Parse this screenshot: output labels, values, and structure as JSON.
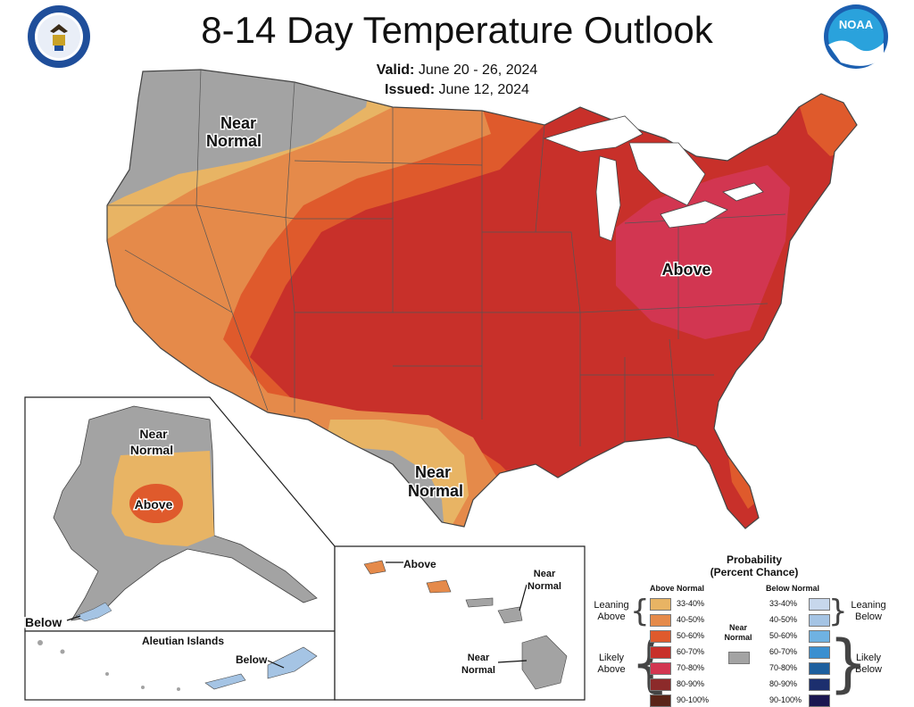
{
  "header": {
    "title": "8-14 Day Temperature Outlook",
    "valid_label": "Valid:",
    "valid_dates": "June 20 - 26, 2024",
    "issued_label": "Issued:",
    "issued_date": "June 12, 2024"
  },
  "logos": {
    "left": "commerce-seal-icon",
    "right": "noaa-logo-icon"
  },
  "colors": {
    "near_normal": "#a3a3a3",
    "above_33_40": "#e8b464",
    "above_40_50": "#e58a4a",
    "above_50_60": "#df5a2c",
    "above_60_70": "#c8302a",
    "above_70_80": "#d23651",
    "above_80_90": "#8c2a2a",
    "above_90_100": "#5a2418",
    "below_33_40": "#c7d7ec",
    "below_40_50": "#a5c4e4",
    "below_50_60": "#6fb2e2",
    "below_60_70": "#3a8fd0",
    "below_70_80": "#1d5f9e",
    "below_80_90": "#1c2f6e",
    "below_90_100": "#1a1650"
  },
  "map_labels": {
    "near_normal_nw": [
      "Near",
      "Normal"
    ],
    "above_ohio": "Above",
    "near_normal_tx": [
      "Near",
      "Normal"
    ],
    "ak_near_normal": [
      "Near",
      "Normal"
    ],
    "ak_above": "Above",
    "ak_below": "Below",
    "aleutian_title": "Aleutian Islands",
    "aleutian_below": "Below",
    "hi_above": "Above",
    "hi_near_normal_1": [
      "Near",
      "Normal"
    ],
    "hi_near_normal_2": [
      "Near",
      "Normal"
    ]
  },
  "legend": {
    "title_line1": "Probability",
    "title_line2": "(Percent Chance)",
    "above_head": "Above Normal",
    "below_head": "Below Normal",
    "near_label": [
      "Near",
      "Normal"
    ],
    "leaning_above": [
      "Leaning",
      "Above"
    ],
    "likely_above": [
      "Likely",
      "Above"
    ],
    "leaning_below": [
      "Leaning",
      "Below"
    ],
    "likely_below": [
      "Likely",
      "Below"
    ],
    "ranges": [
      "33-40%",
      "40-50%",
      "50-60%",
      "60-70%",
      "70-80%",
      "80-90%",
      "90-100%"
    ]
  }
}
